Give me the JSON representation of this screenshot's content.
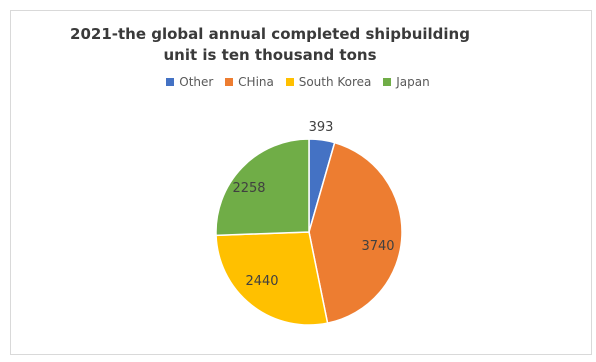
{
  "chart_data": {
    "type": "pie",
    "title_line1": "2021-the global annual completed shipbuilding",
    "title_line2": "unit is ten thousand tons",
    "categories": [
      "Other",
      "CHina",
      "South Korea",
      "Japan"
    ],
    "values": [
      393,
      3740,
      2440,
      2258
    ],
    "value_labels": [
      "393",
      "3740",
      "2440",
      "2258"
    ],
    "colors": [
      "#4472c4",
      "#ed7d31",
      "#ffc000",
      "#70ad47"
    ],
    "legend_position": "top"
  }
}
